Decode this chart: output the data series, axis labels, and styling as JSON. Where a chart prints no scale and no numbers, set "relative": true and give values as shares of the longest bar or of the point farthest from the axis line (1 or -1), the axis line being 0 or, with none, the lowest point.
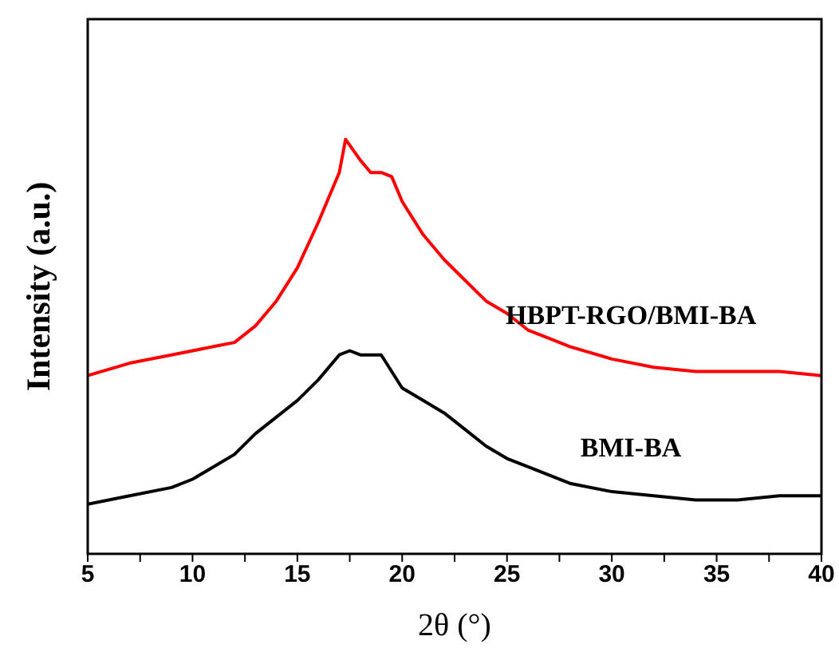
{
  "chart_data": {
    "type": "line",
    "xlabel": "2θ (°)",
    "ylabel": "Intensity (a.u.)",
    "relative": true,
    "tick_labels": "x",
    "marker": "none",
    "xlim": [
      5,
      40
    ],
    "xticks": [
      5,
      {
        "value": 7.5,
        "label": null
      },
      10,
      {
        "value": 12.5,
        "label": null
      },
      15,
      {
        "value": 17.5,
        "label": null
      },
      20,
      {
        "value": 22.5,
        "label": null
      },
      25,
      {
        "value": 27.5,
        "label": null
      },
      30,
      {
        "value": 32.5,
        "label": null
      },
      35,
      {
        "value": 37.5,
        "label": null
      },
      40
    ],
    "series": [
      {
        "name": "HBPT-RGO/BMI-BA",
        "color": "#ff0000",
        "x": [
          5,
          7,
          9,
          11,
          12,
          13,
          14,
          15,
          16,
          16.5,
          17,
          17.3,
          18,
          18.5,
          19,
          19.5,
          20,
          21,
          22,
          23,
          24,
          25,
          26,
          27,
          28,
          30,
          32,
          34,
          36,
          38,
          40
        ],
        "values": [
          0.43,
          0.46,
          0.48,
          0.5,
          0.51,
          0.55,
          0.61,
          0.69,
          0.8,
          0.86,
          0.92,
          1,
          0.95,
          0.92,
          0.92,
          0.91,
          0.85,
          0.77,
          0.71,
          0.66,
          0.61,
          0.58,
          0.54,
          0.52,
          0.5,
          0.47,
          0.45,
          0.44,
          0.44,
          0.44,
          0.43
        ]
      },
      {
        "name": "BMI-BA",
        "color": "#000000",
        "x": [
          5,
          7,
          9,
          10,
          11,
          12,
          13,
          14,
          15,
          16,
          17,
          17.5,
          18,
          19,
          20,
          21,
          22,
          23,
          24,
          25,
          26,
          28,
          30,
          32,
          34,
          36,
          38,
          40
        ],
        "values": [
          0.12,
          0.14,
          0.16,
          0.18,
          0.21,
          0.24,
          0.29,
          0.33,
          0.37,
          0.42,
          0.48,
          0.49,
          0.48,
          0.48,
          0.4,
          0.37,
          0.34,
          0.3,
          0.26,
          0.23,
          0.21,
          0.17,
          0.15,
          0.14,
          0.13,
          0.13,
          0.14,
          0.14
        ]
      }
    ]
  }
}
